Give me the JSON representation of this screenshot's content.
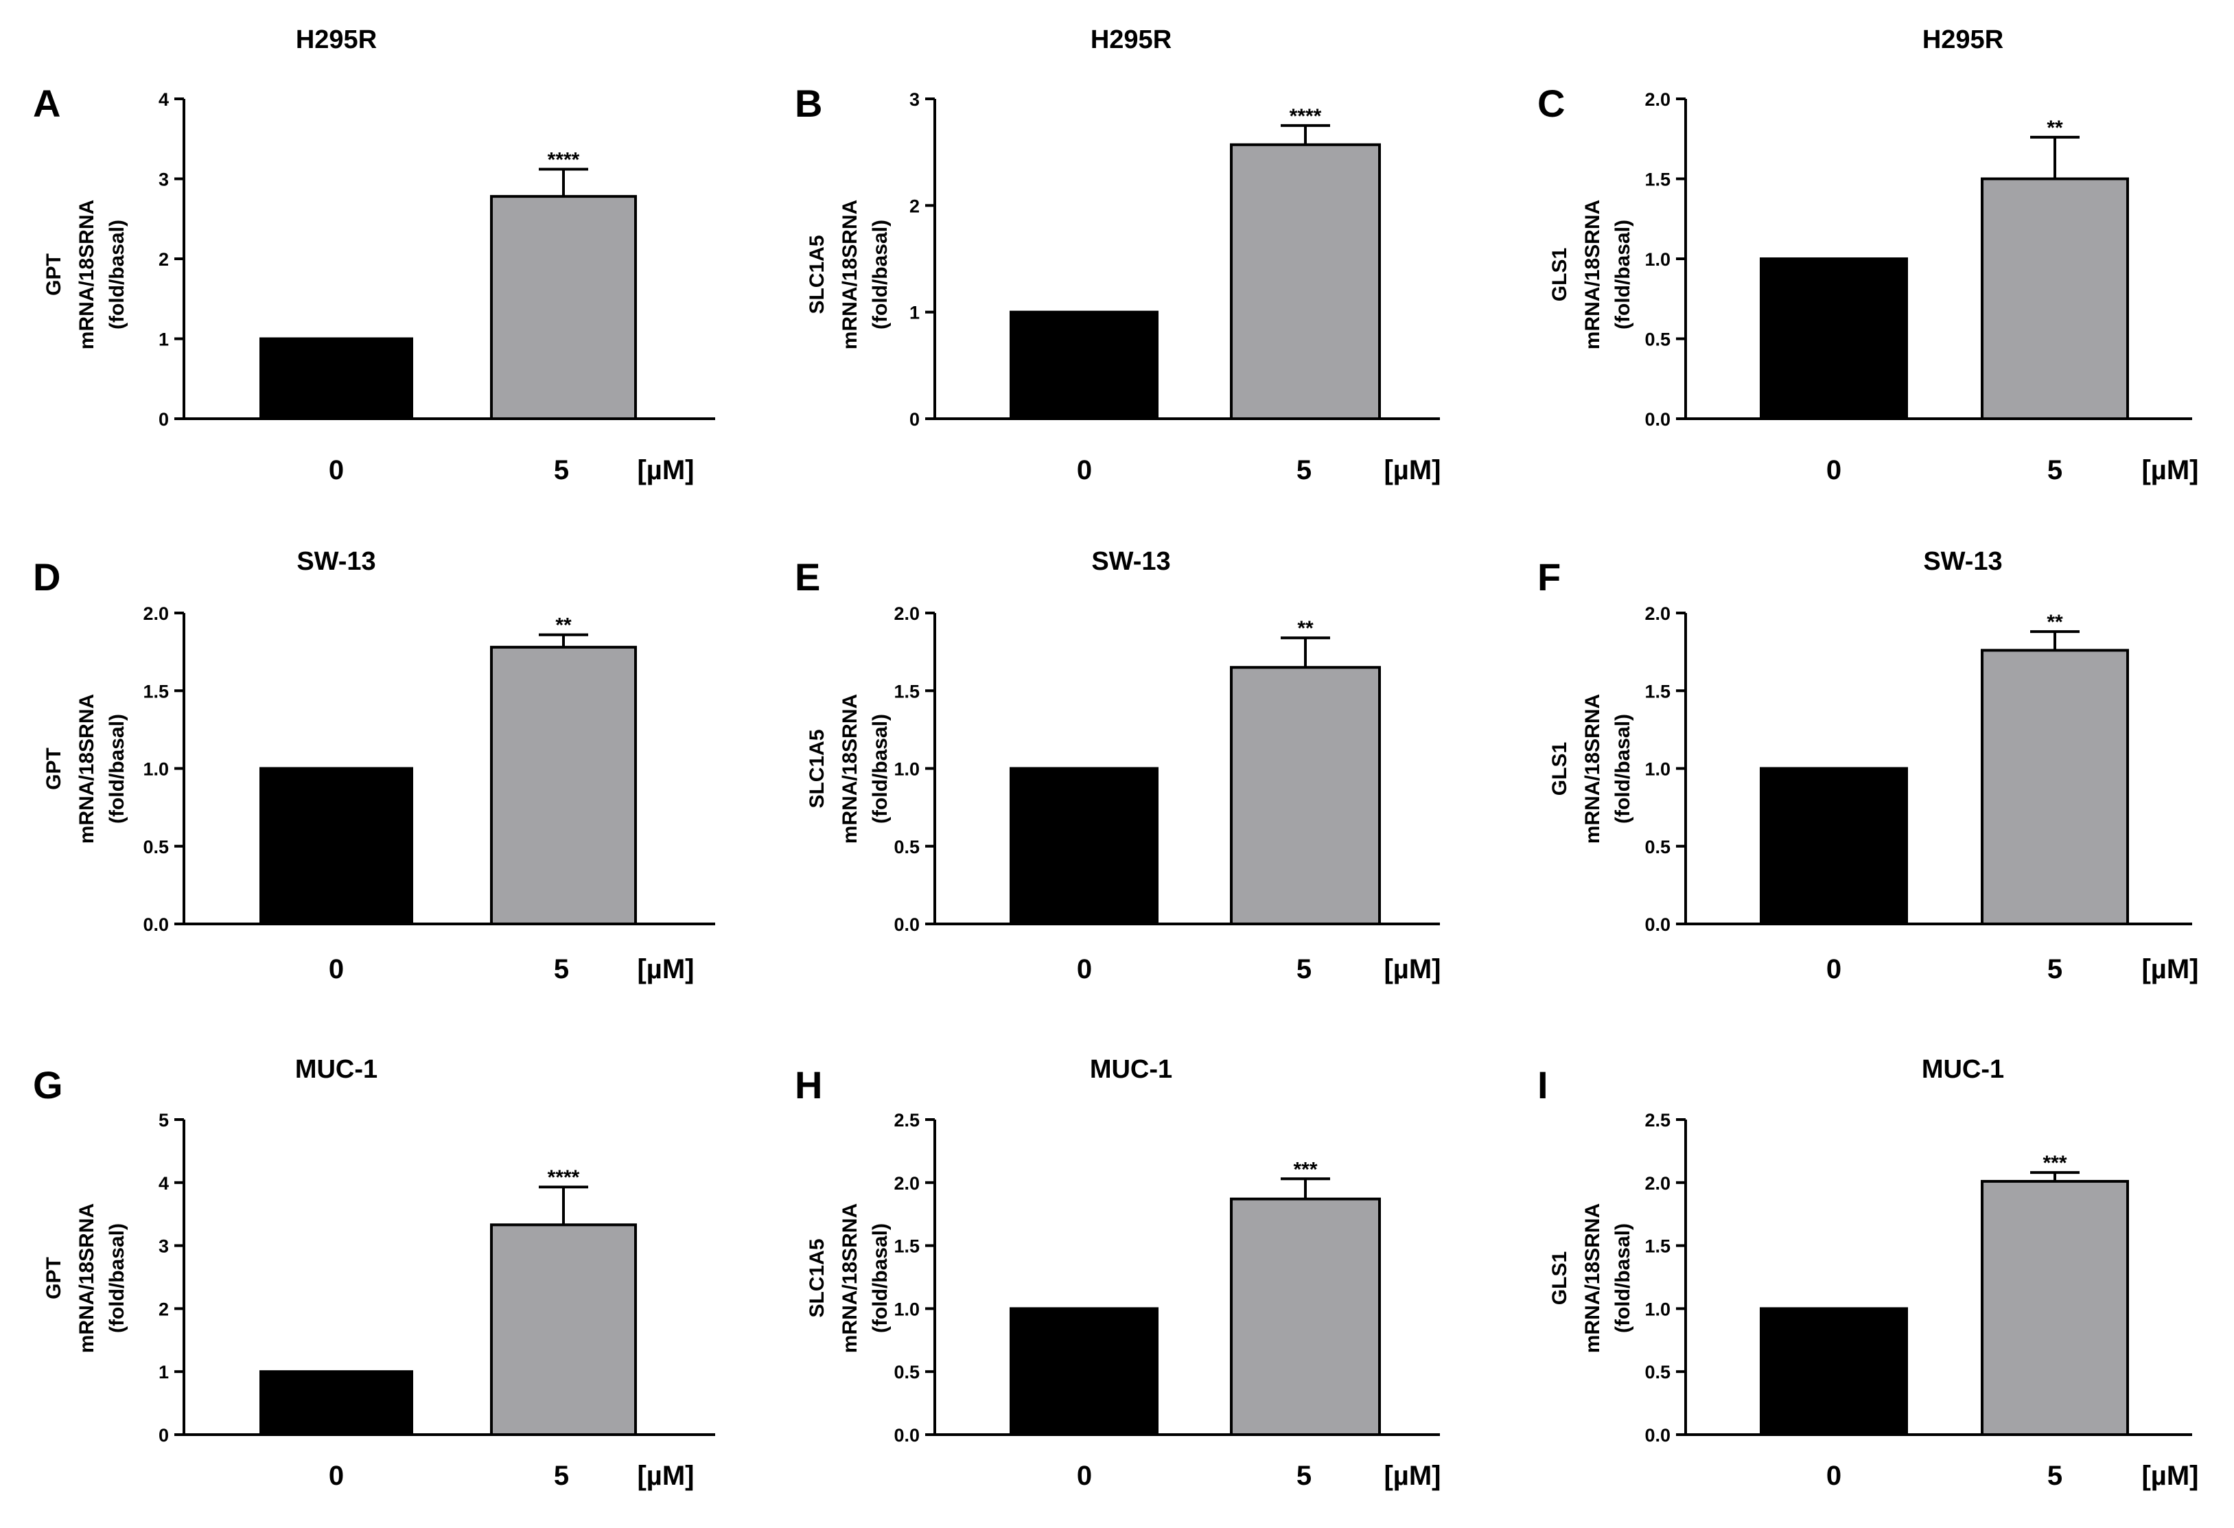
{
  "figure": {
    "background": "#ffffff",
    "bar_colors": {
      "control": "#000000",
      "treated": "#a3a3a6"
    }
  },
  "chart_data": [
    {
      "panel": "A",
      "type": "bar",
      "title": "H295R",
      "ylabel": [
        "GPT",
        "mRNA/18SRNA",
        "(fold/basal)"
      ],
      "categories": [
        "0",
        "5"
      ],
      "unit": "[µM]",
      "values": [
        1.0,
        2.78
      ],
      "errors": [
        0,
        0.34
      ],
      "significance": [
        "",
        "****"
      ],
      "ylim": [
        0,
        4
      ],
      "ticks": [
        "0",
        "1",
        "2",
        "3",
        "4"
      ]
    },
    {
      "panel": "B",
      "type": "bar",
      "title": "H295R",
      "ylabel": [
        "SLC1A5",
        "mRNA/18SRNA",
        "(fold/basal)"
      ],
      "categories": [
        "0",
        "5"
      ],
      "unit": "[µM]",
      "values": [
        1.0,
        2.57
      ],
      "errors": [
        0,
        0.18
      ],
      "significance": [
        "",
        "****"
      ],
      "ylim": [
        0,
        3
      ],
      "ticks": [
        "0",
        "1",
        "2",
        "3"
      ]
    },
    {
      "panel": "C",
      "type": "bar",
      "title": "H295R",
      "ylabel": [
        "GLS1",
        "mRNA/18SRNA",
        "(fold/basal)"
      ],
      "categories": [
        "0",
        "5"
      ],
      "unit": "[µM]",
      "values": [
        1.0,
        1.5
      ],
      "errors": [
        0,
        0.26
      ],
      "significance": [
        "",
        "**"
      ],
      "ylim": [
        0,
        2
      ],
      "ticks": [
        "0.0",
        "0.5",
        "1.0",
        "1.5",
        "2.0"
      ]
    },
    {
      "panel": "D",
      "type": "bar",
      "title": "SW-13",
      "ylabel": [
        "GPT",
        "mRNA/18SRNA",
        "(fold/basal)"
      ],
      "categories": [
        "0",
        "5"
      ],
      "unit": "[µM]",
      "values": [
        1.0,
        1.78
      ],
      "errors": [
        0,
        0.08
      ],
      "significance": [
        "",
        "**"
      ],
      "ylim": [
        0,
        2
      ],
      "ticks": [
        "0.0",
        "0.5",
        "1.0",
        "1.5",
        "2.0"
      ]
    },
    {
      "panel": "E",
      "type": "bar",
      "title": "SW-13",
      "ylabel": [
        "SLC1A5",
        "mRNA/18SRNA",
        "(fold/basal)"
      ],
      "categories": [
        "0",
        "5"
      ],
      "unit": "[µM]",
      "values": [
        1.0,
        1.65
      ],
      "errors": [
        0,
        0.19
      ],
      "significance": [
        "",
        "**"
      ],
      "ylim": [
        0,
        2
      ],
      "ticks": [
        "0.0",
        "0.5",
        "1.0",
        "1.5",
        "2.0"
      ]
    },
    {
      "panel": "F",
      "type": "bar",
      "title": "SW-13",
      "ylabel": [
        "GLS1",
        "mRNA/18SRNA",
        "(fold/basal)"
      ],
      "categories": [
        "0",
        "5"
      ],
      "unit": "[µM]",
      "values": [
        1.0,
        1.76
      ],
      "errors": [
        0,
        0.12
      ],
      "significance": [
        "",
        "**"
      ],
      "ylim": [
        0,
        2
      ],
      "ticks": [
        "0.0",
        "0.5",
        "1.0",
        "1.5",
        "2.0"
      ]
    },
    {
      "panel": "G",
      "type": "bar",
      "title": "MUC-1",
      "ylabel": [
        "GPT",
        "mRNA/18SRNA",
        "(fold/basal)"
      ],
      "categories": [
        "0",
        "5"
      ],
      "unit": "[µM]",
      "values": [
        1.0,
        3.33
      ],
      "errors": [
        0,
        0.6
      ],
      "significance": [
        "",
        "****"
      ],
      "ylim": [
        0,
        5
      ],
      "ticks": [
        "0",
        "1",
        "2",
        "3",
        "4",
        "5"
      ]
    },
    {
      "panel": "H",
      "type": "bar",
      "title": "MUC-1",
      "ylabel": [
        "SLC1A5",
        "mRNA/18SRNA",
        "(fold/basal)"
      ],
      "categories": [
        "0",
        "5"
      ],
      "unit": "[µM]",
      "values": [
        1.0,
        1.87
      ],
      "errors": [
        0,
        0.16
      ],
      "significance": [
        "",
        "***"
      ],
      "ylim": [
        0,
        2.5
      ],
      "ticks": [
        "0.0",
        "0.5",
        "1.0",
        "1.5",
        "2.0",
        "2.5"
      ]
    },
    {
      "panel": "I",
      "type": "bar",
      "title": "MUC-1",
      "ylabel": [
        "GLS1",
        "mRNA/18SRNA",
        "(fold/basal)"
      ],
      "categories": [
        "0",
        "5"
      ],
      "unit": "[µM]",
      "values": [
        1.0,
        2.01
      ],
      "errors": [
        0,
        0.07
      ],
      "significance": [
        "",
        "***"
      ],
      "ylim": [
        0,
        2.5
      ],
      "ticks": [
        "0.0",
        "0.5",
        "1.0",
        "1.5",
        "2.0",
        "2.5"
      ]
    }
  ]
}
